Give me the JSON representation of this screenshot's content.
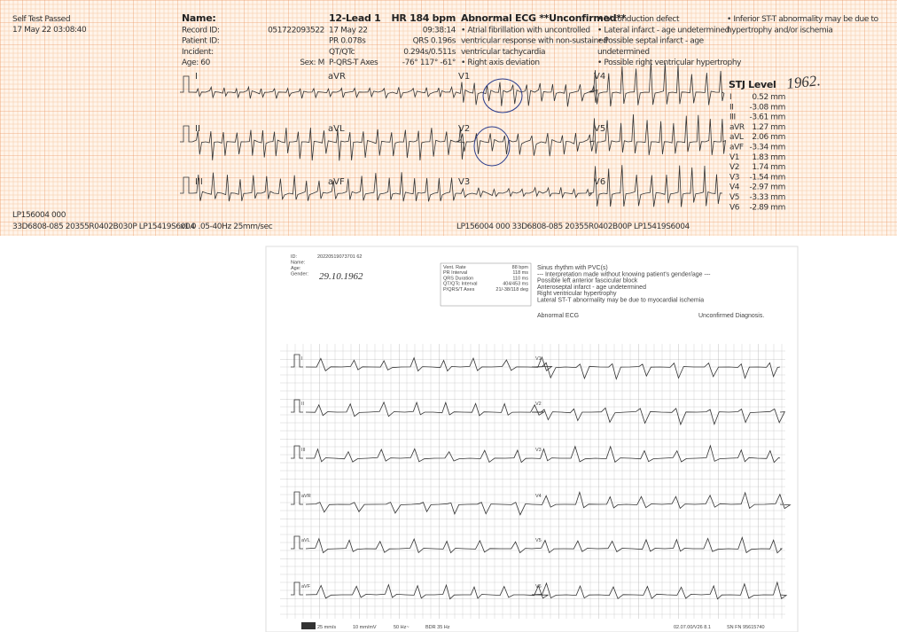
{
  "top_ecg": {
    "status": [
      "Self Test Passed",
      "17 May 22 03:08:40"
    ],
    "patient_labels": [
      "Name:",
      "Record ID:",
      "Patient ID:",
      "Incident:",
      "Age: 60"
    ],
    "record_id": "051722093522",
    "sex": "Sex: M",
    "test": [
      "12-Lead 1",
      "17 May 22",
      "PR 0.078s",
      "QT/QTc",
      "P-QRS-T Axes"
    ],
    "measures": [
      "HR 184 bpm",
      "09:38:14",
      "QRS 0.196s",
      "0.294s/0.511s",
      "-76° 117° -61°"
    ],
    "interpretation_title": "Abnormal ECG **Unconfirmed**",
    "interpretation": [
      "• Atrial fibrillation with uncontrolled",
      "ventricular response with non-sustained",
      "ventricular tachycardia",
      "• Right axis deviation"
    ],
    "interpretation_2": [
      "• IV conduction defect",
      "• Lateral infarct - age undetermined",
      "• Possible septal infarct - age",
      "undetermined",
      "• Possible right ventricular hypertrophy"
    ],
    "interpretation_3": [
      "• Inferior ST-T abnormality may be due to",
      "hypertrophy and/or ischemia"
    ],
    "handwritten": "1962.",
    "leads": [
      "I",
      "aVR",
      "V1",
      "V4",
      "II",
      "aVL",
      "V2",
      "V5",
      "III",
      "aVF",
      "V3",
      "V6"
    ],
    "stj_title": "STJ Level",
    "stj_rows": [
      [
        "I",
        "0.52 mm"
      ],
      [
        "II",
        "-3.08 mm"
      ],
      [
        "III",
        "-3.61 mm"
      ],
      [
        "aVR",
        "1.27 mm"
      ],
      [
        "aVL",
        "2.06 mm"
      ],
      [
        "aVF",
        "-3.34 mm"
      ],
      [
        "V1",
        "1.83 mm"
      ],
      [
        "V2",
        "1.74 mm"
      ],
      [
        "V3",
        "-1.54 mm"
      ],
      [
        "V4",
        "-2.97 mm"
      ],
      [
        "V5",
        "-3.33 mm"
      ],
      [
        "V6",
        "-2.89 mm"
      ]
    ],
    "footer": [
      "LP156004 000",
      "33D6808-085 20355R0402B030P LP15419S6004",
      "x1.0 .05-40Hz 25mm/sec",
      "LP156004 000 33D6808-085 20355R0402B00P LP15419S6004"
    ]
  },
  "bottom_ecg": {
    "id_labels": [
      "ID:",
      "Name:",
      "Age:",
      "Gender:"
    ],
    "id_value": "20220519073701 62",
    "handwritten_dob": "29.10.1962",
    "measures": [
      [
        "Vent. Rate",
        "88 bpm"
      ],
      [
        "PR Interval",
        "118 ms"
      ],
      [
        "QRS Duration",
        "110 ms"
      ],
      [
        "QT/QTc Interval",
        "404/453 ms"
      ],
      [
        "P/QRS/T Axes",
        "21/-38/118 deg"
      ]
    ],
    "interpretation": [
      "Sinus rhythm with PVC(s)",
      "--- Interpretation made without knowing patient's gender/age ---",
      "Possible left anterior fascicular block",
      "Anteroseptal infarct - age undetermined",
      "Right ventricular hypertrophy",
      "Lateral ST-T abnormality may be due to myocardial ischemia"
    ],
    "abnormal": "Abnormal ECG",
    "unconfirmed": "Unconfirmed Diagnosis.",
    "leads": [
      "I",
      "V1",
      "II",
      "V2",
      "III",
      "V3",
      "aVR",
      "V4",
      "aVL",
      "V5",
      "aVF",
      "V6"
    ],
    "footer": [
      "25 mm/s",
      "10 mm/mV",
      "50 Hz~",
      "BDR 35 Hz",
      "02.07.00/V26 8.1",
      "SN FN 95615740"
    ]
  }
}
